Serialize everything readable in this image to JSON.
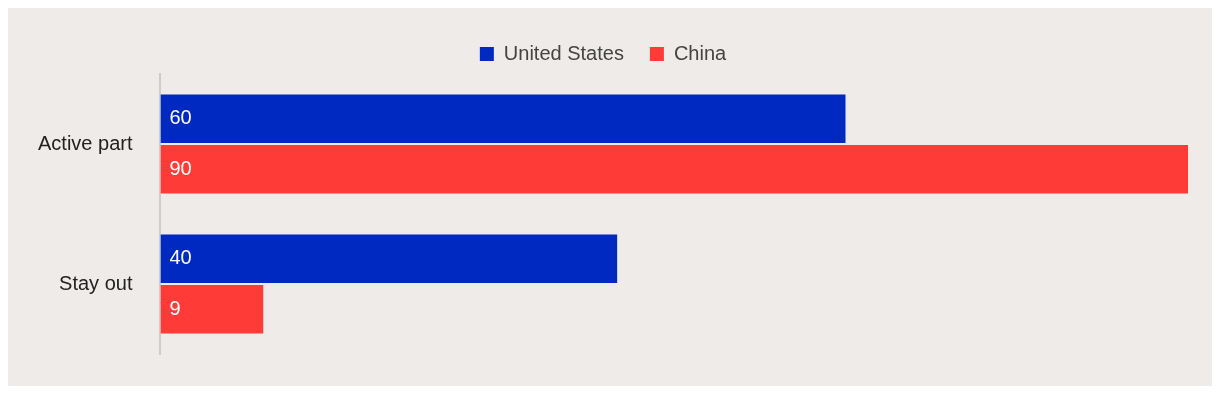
{
  "chart_data": {
    "type": "bar",
    "orientation": "horizontal",
    "categories": [
      "Active part",
      "Stay out"
    ],
    "series": [
      {
        "name": "United States",
        "color": "#0029c1",
        "values": [
          60,
          40
        ]
      },
      {
        "name": "China",
        "color": "#ff3b37",
        "values": [
          90,
          9
        ]
      }
    ],
    "data_labels": true,
    "legend": "top"
  }
}
